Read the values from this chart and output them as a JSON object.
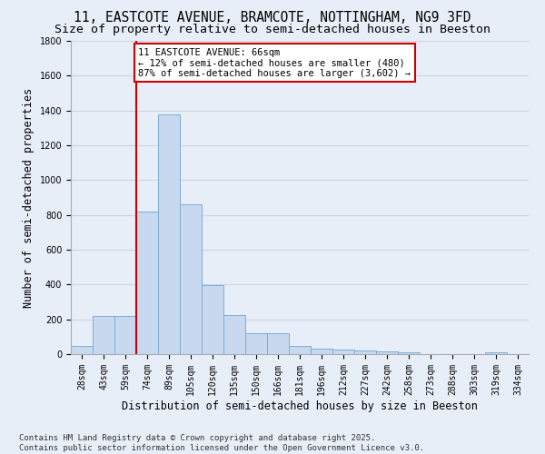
{
  "title_line1": "11, EASTCOTE AVENUE, BRAMCOTE, NOTTINGHAM, NG9 3FD",
  "title_line2": "Size of property relative to semi-detached houses in Beeston",
  "xlabel": "Distribution of semi-detached houses by size in Beeston",
  "ylabel": "Number of semi-detached properties",
  "bins": [
    "28sqm",
    "43sqm",
    "59sqm",
    "74sqm",
    "89sqm",
    "105sqm",
    "120sqm",
    "135sqm",
    "150sqm",
    "166sqm",
    "181sqm",
    "196sqm",
    "212sqm",
    "227sqm",
    "242sqm",
    "258sqm",
    "273sqm",
    "288sqm",
    "303sqm",
    "319sqm",
    "334sqm"
  ],
  "values": [
    48,
    220,
    220,
    820,
    1380,
    860,
    395,
    225,
    120,
    120,
    48,
    32,
    25,
    22,
    15,
    10,
    0,
    0,
    0,
    12,
    0
  ],
  "bar_color": "#c8d8ee",
  "bar_edge_color": "#7aafd4",
  "grid_color": "#c8d4e8",
  "background_color": "#e8eef8",
  "annotation_title": "11 EASTCOTE AVENUE: 66sqm",
  "annotation_line2": "← 12% of semi-detached houses are smaller (480)",
  "annotation_line3": "87% of semi-detached houses are larger (3,602) →",
  "annotation_box_color": "#ffffff",
  "annotation_border_color": "#cc0000",
  "vline_color": "#cc0000",
  "vline_x": 2.5,
  "ylim": [
    0,
    1800
  ],
  "yticks": [
    0,
    200,
    400,
    600,
    800,
    1000,
    1200,
    1400,
    1600,
    1800
  ],
  "footer_line1": "Contains HM Land Registry data © Crown copyright and database right 2025.",
  "footer_line2": "Contains public sector information licensed under the Open Government Licence v3.0.",
  "title_fontsize": 10.5,
  "subtitle_fontsize": 9.5,
  "axis_label_fontsize": 8.5,
  "tick_fontsize": 7,
  "annotation_fontsize": 7.5,
  "footer_fontsize": 6.5
}
